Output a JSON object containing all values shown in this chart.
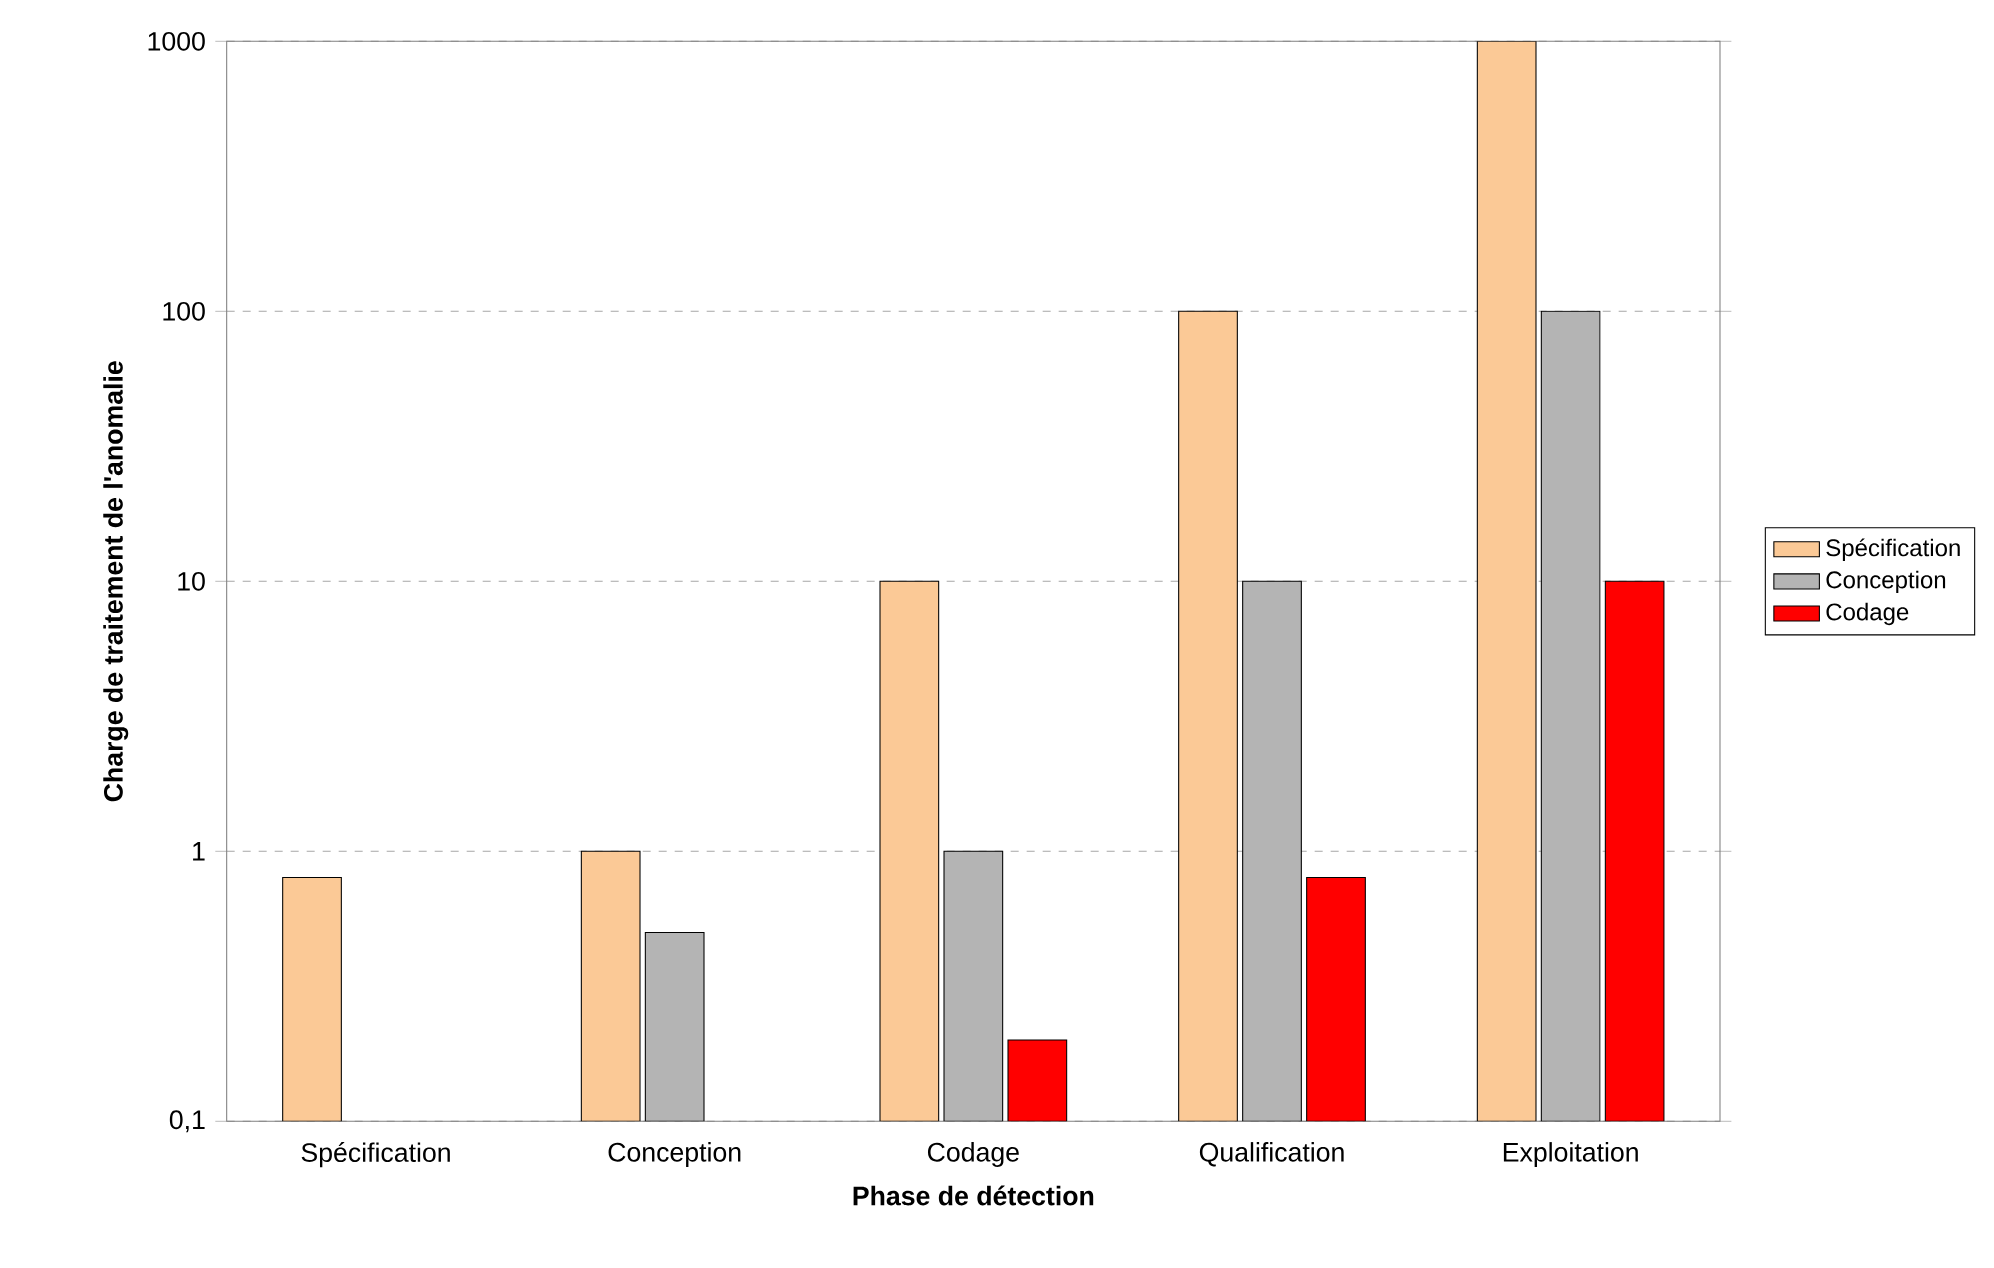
{
  "chart_data": {
    "type": "bar",
    "xlabel": "Phase de détection",
    "ylabel": "Charge de traitement de l'anomalie",
    "categories": [
      "Spécification",
      "Conception",
      "Codage",
      "Qualification",
      "Exploitation"
    ],
    "series": [
      {
        "name": "Spécification",
        "color": "#fbc996",
        "values": [
          0.8,
          1,
          10,
          100,
          1000
        ]
      },
      {
        "name": "Conception",
        "color": "#b4b4b4",
        "values": [
          null,
          0.5,
          1,
          10,
          100
        ]
      },
      {
        "name": "Codage",
        "color": "#ff0000",
        "values": [
          null,
          null,
          0.2,
          0.8,
          10
        ]
      }
    ],
    "log": "y",
    "ylim": [
      0.1,
      1000
    ],
    "yticks": [
      {
        "value": 0.1,
        "label": "0,1"
      },
      1,
      10,
      100,
      1000
    ],
    "grid": "y",
    "legend": "right"
  }
}
